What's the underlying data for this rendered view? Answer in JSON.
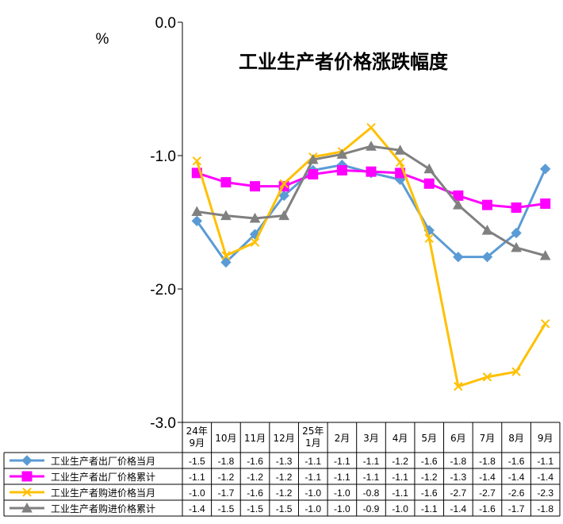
{
  "chart_data": {
    "type": "line",
    "title": "工业生产者价格涨跌幅度",
    "ylabel": "%",
    "ylim": [
      -3.0,
      0.0
    ],
    "yticks": [
      "0.0",
      "-1.0",
      "-2.0",
      "-3.0"
    ],
    "ytick_values": [
      0.0,
      -1.0,
      -2.0,
      -3.0
    ],
    "categories": [
      "24年\n9月",
      "10月",
      "11月",
      "12月",
      "25年\n1月",
      "2月",
      "3月",
      "4月",
      "5月",
      "6月",
      "7月",
      "8月",
      "9月"
    ],
    "grid": false,
    "legend_placement": "bottom-table",
    "series": [
      {
        "name": "工业生产者出厂价格当月",
        "color": "#5B9BD5",
        "marker": "diamond",
        "values": [
          -1.49,
          -1.8,
          -1.59,
          -1.3,
          -1.11,
          -1.07,
          -1.13,
          -1.18,
          -1.56,
          -1.76,
          -1.76,
          -1.58,
          -1.1
        ],
        "labels": [
          "-1.5",
          "-1.8",
          "-1.6",
          "-1.3",
          "-1.1",
          "-1.1",
          "-1.1",
          "-1.2",
          "-1.6",
          "-1.8",
          "-1.8",
          "-1.6",
          "-1.1"
        ]
      },
      {
        "name": "工业生产者出厂价格累计",
        "color": "#FF00FF",
        "marker": "square",
        "values": [
          -1.13,
          -1.2,
          -1.23,
          -1.23,
          -1.14,
          -1.11,
          -1.12,
          -1.13,
          -1.21,
          -1.3,
          -1.37,
          -1.39,
          -1.36
        ],
        "labels": [
          "-1.1",
          "-1.2",
          "-1.2",
          "-1.2",
          "-1.1",
          "-1.1",
          "-1.1",
          "-1.1",
          "-1.2",
          "-1.3",
          "-1.4",
          "-1.4",
          "-1.4"
        ]
      },
      {
        "name": "工业生产者购进价格当月",
        "color": "#FFC000",
        "marker": "x",
        "values": [
          -1.04,
          -1.75,
          -1.65,
          -1.21,
          -1.01,
          -0.97,
          -0.79,
          -1.05,
          -1.62,
          -2.73,
          -2.66,
          -2.62,
          -2.26
        ],
        "labels": [
          "-1.0",
          "-1.7",
          "-1.6",
          "-1.2",
          "-1.0",
          "-1.0",
          "-0.8",
          "-1.1",
          "-1.6",
          "-2.7",
          "-2.7",
          "-2.6",
          "-2.3"
        ]
      },
      {
        "name": "工业生产者购进价格累计",
        "color": "#808080",
        "marker": "triangle",
        "values": [
          -1.42,
          -1.45,
          -1.47,
          -1.45,
          -1.03,
          -0.99,
          -0.93,
          -0.96,
          -1.1,
          -1.37,
          -1.56,
          -1.69,
          -1.75
        ],
        "labels": [
          "-1.4",
          "-1.5",
          "-1.5",
          "-1.5",
          "-1.0",
          "-1.0",
          "-0.9",
          "-1.0",
          "-1.1",
          "-1.4",
          "-1.6",
          "-1.7",
          "-1.8"
        ]
      }
    ]
  }
}
